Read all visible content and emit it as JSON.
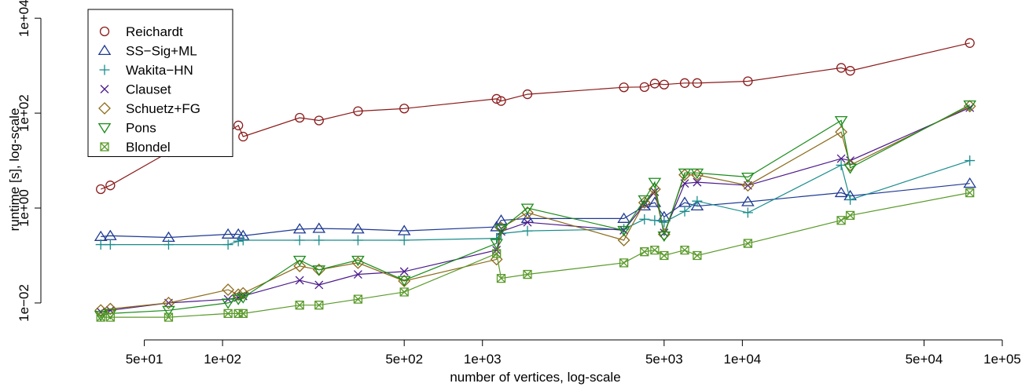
{
  "chart_data": {
    "type": "line",
    "xlabel": "number of vertices, log-scale",
    "ylabel": "runtime [s], log-scale",
    "xscale": "log",
    "yscale": "log",
    "xlim": [
      20,
      100000
    ],
    "ylim": [
      0.004,
      20000
    ],
    "xticks": [
      50,
      100,
      500,
      1000,
      5000,
      10000,
      50000,
      100000
    ],
    "xtick_labels": [
      "5e+01",
      "1e+02",
      "5e+02",
      "1e+03",
      "5e+03",
      "1e+04",
      "5e+04",
      "1e+05"
    ],
    "yticks": [
      0.01,
      1,
      100,
      10000
    ],
    "ytick_labels": [
      "1e−02",
      "1e+00",
      "1e+02",
      "1e+04"
    ],
    "legend_position": "top-left",
    "x": [
      34,
      37,
      62,
      105,
      115,
      120,
      198,
      235,
      332,
      500,
      1133,
      1180,
      1490,
      3500,
      4200,
      4600,
      5000,
      6000,
      6700,
      10500,
      24000,
      26000,
      75000
    ],
    "series": [
      {
        "name": "Reichardt",
        "marker": "circle",
        "color": "#8B1A1A",
        "values": [
          2.5,
          3.0,
          15,
          40,
          55,
          32,
          80,
          70,
          110,
          125,
          200,
          180,
          250,
          350,
          355,
          420,
          400,
          430,
          430,
          470,
          900,
          780,
          3000
        ]
      },
      {
        "name": "SS−Sig+ML",
        "marker": "triangle-up",
        "color": "#1F3A93",
        "values": [
          0.25,
          0.26,
          0.24,
          0.28,
          0.28,
          0.26,
          0.36,
          0.37,
          0.36,
          0.33,
          0.4,
          0.55,
          0.6,
          0.6,
          1.1,
          1.3,
          0.65,
          1.3,
          1.1,
          1.35,
          2.1,
          1.8,
          3.3
        ]
      },
      {
        "name": "Wakita−HN",
        "marker": "plus",
        "color": "#1A8C8C",
        "values": [
          0.17,
          0.17,
          0.17,
          0.17,
          0.2,
          0.21,
          0.21,
          0.21,
          0.21,
          0.21,
          0.23,
          0.29,
          0.33,
          0.36,
          0.58,
          0.55,
          0.5,
          0.85,
          1.4,
          0.8,
          8.0,
          1.5,
          10.0
        ]
      },
      {
        "name": "Clauset",
        "marker": "cross",
        "color": "#4B1A8C",
        "values": [
          0.0065,
          0.007,
          0.01,
          0.012,
          0.013,
          0.014,
          0.03,
          0.024,
          0.04,
          0.046,
          0.13,
          0.32,
          0.5,
          0.34,
          1.2,
          2.2,
          0.3,
          3.3,
          3.5,
          3.0,
          11.0,
          10.0,
          130
        ]
      },
      {
        "name": "Schuetz+FG",
        "marker": "diamond",
        "color": "#8C6A1A",
        "values": [
          0.007,
          0.0075,
          0.01,
          0.019,
          0.015,
          0.016,
          0.06,
          0.05,
          0.07,
          0.029,
          0.083,
          0.38,
          0.8,
          0.21,
          1.3,
          2.5,
          0.28,
          5.0,
          5.0,
          3.0,
          40,
          8.0,
          140
        ]
      },
      {
        "name": "Pons",
        "marker": "triangle-down",
        "color": "#1A8C1A",
        "values": [
          0.0055,
          0.006,
          0.007,
          0.01,
          0.012,
          0.013,
          0.08,
          0.05,
          0.08,
          0.03,
          0.18,
          0.36,
          1.0,
          0.34,
          1.5,
          3.5,
          0.26,
          5.5,
          5.5,
          4.5,
          70,
          7.0,
          150
        ]
      },
      {
        "name": "Blondel",
        "marker": "box-x",
        "color": "#5A9A2A",
        "values": [
          0.005,
          0.005,
          0.005,
          0.006,
          0.006,
          0.006,
          0.009,
          0.009,
          0.012,
          0.017,
          0.11,
          0.033,
          0.04,
          0.07,
          0.12,
          0.13,
          0.1,
          0.13,
          0.1,
          0.18,
          0.55,
          0.7,
          2.1
        ]
      }
    ]
  }
}
